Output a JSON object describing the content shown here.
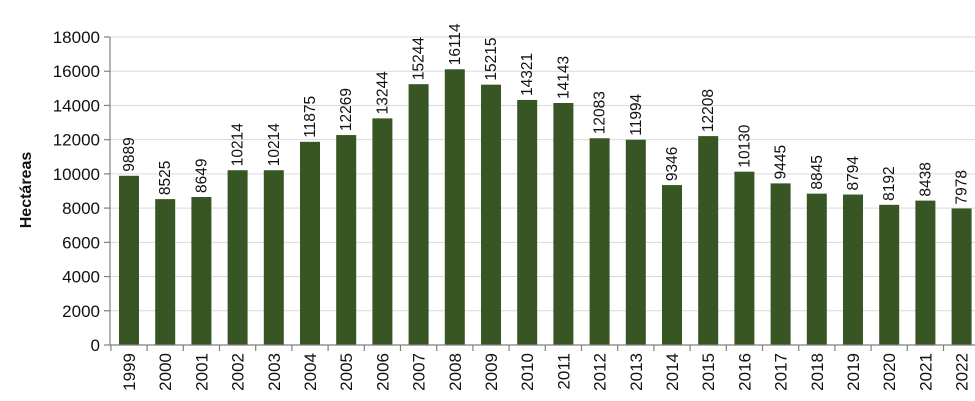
{
  "chart_data": {
    "type": "bar",
    "ylabel": "Hectáreas",
    "xlabel": "",
    "ylim": [
      0,
      18000
    ],
    "yticks": [
      0,
      2000,
      4000,
      6000,
      8000,
      10000,
      12000,
      14000,
      16000,
      18000
    ],
    "grid": true,
    "legend": "none",
    "bar_color": "#375623",
    "categories": [
      "1999",
      "2000",
      "2001",
      "2002",
      "2003",
      "2004",
      "2005",
      "2006",
      "2007",
      "2008",
      "2009",
      "2010",
      "2011",
      "2012",
      "2013",
      "2014",
      "2015",
      "2016",
      "2017",
      "2018",
      "2019",
      "2020",
      "2021",
      "2022"
    ],
    "values": [
      9889,
      8525,
      8649,
      10214,
      10214,
      11875,
      12269,
      13244,
      15244,
      16114,
      15215,
      14321,
      14143,
      12083,
      11994,
      9346,
      12208,
      10130,
      9445,
      8845,
      8794,
      8192,
      8438,
      7978
    ]
  }
}
